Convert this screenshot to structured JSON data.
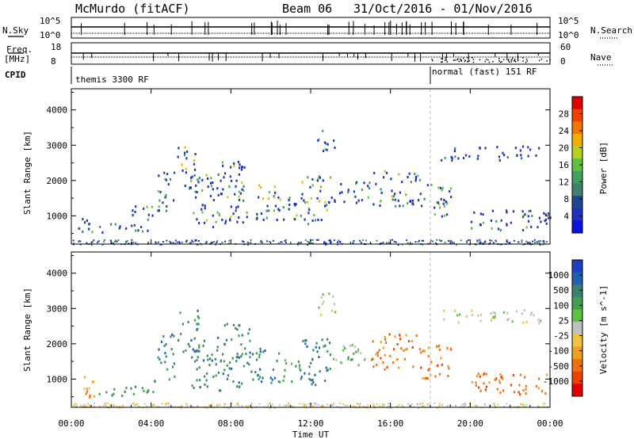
{
  "header": {
    "station": "McMurdo (fitACF)",
    "beam": "Beam 06",
    "dates": "31/Oct/2016 - 01/Nov/2016"
  },
  "status_panel": {
    "nsky_label": "N.Sky",
    "nsearch_label": "N.Search",
    "nsky_ticks": [
      "10^5",
      "10^0"
    ],
    "nsearch_ticks": [
      "10^5",
      "10^0"
    ],
    "freq_label_1": "Freq.",
    "freq_label_2": "[MHz]",
    "freq_ticks": [
      "18",
      "8"
    ],
    "nave_label": "Nave",
    "nave_ticks": [
      "60",
      "0"
    ],
    "cpid_label": "CPID",
    "cpid_segments": [
      {
        "label": "themis 3300 RF",
        "start_hour": 0
      },
      {
        "label": "normal (fast) 151 RF",
        "start_hour": 18
      }
    ]
  },
  "chart_data": [
    {
      "type": "heatmap",
      "name": "power-panel",
      "quantity": "Power",
      "ylabel": "Slant Range [km]",
      "yticks": [
        1000,
        2000,
        3000,
        4000
      ],
      "ylim": [
        200,
        4600
      ],
      "xlim_hours": [
        0,
        24
      ],
      "colorbar_label": "Power [dB]",
      "colorbar_ticks": [
        "28",
        "24",
        "20",
        "16",
        "12",
        "8",
        "4"
      ],
      "colorbar_colors": [
        "#e00000",
        "#f04000",
        "#f07800",
        "#f0b000",
        "#b8d020",
        "#60c040",
        "#40a060",
        "#408070",
        "#204890",
        "#2030c0",
        "#1010e0"
      ],
      "dominant_color": "#2848a0",
      "echo_regions": [
        {
          "t0": 0.3,
          "t1": 1.0,
          "r0": 500,
          "r1": 1200,
          "level": 1
        },
        {
          "t0": 1.0,
          "t1": 3.0,
          "r0": 550,
          "r1": 800,
          "level": 1
        },
        {
          "t0": 3.0,
          "t1": 4.2,
          "r0": 550,
          "r1": 1300,
          "level": 2
        },
        {
          "t0": 4.3,
          "t1": 5.2,
          "r0": 1000,
          "r1": 2300,
          "level": 2
        },
        {
          "t0": 5.3,
          "t1": 6.4,
          "r0": 1800,
          "r1": 3000,
          "level": 3
        },
        {
          "t0": 6.0,
          "t1": 7.5,
          "r0": 700,
          "r1": 2200,
          "level": 2
        },
        {
          "t0": 7.5,
          "t1": 9.0,
          "r0": 800,
          "r1": 2600,
          "level": 2
        },
        {
          "t0": 9.0,
          "t1": 10.5,
          "r0": 900,
          "r1": 1900,
          "level": 3
        },
        {
          "t0": 10.5,
          "t1": 11.5,
          "r0": 900,
          "r1": 1600,
          "level": 2
        },
        {
          "t0": 11.5,
          "t1": 13.0,
          "r0": 800,
          "r1": 2200,
          "level": 3
        },
        {
          "t0": 12.3,
          "t1": 13.2,
          "r0": 2800,
          "r1": 3500,
          "level": 1
        },
        {
          "t0": 13.0,
          "t1": 15.0,
          "r0": 1400,
          "r1": 2000,
          "level": 2
        },
        {
          "t0": 15.0,
          "t1": 17.5,
          "r0": 1300,
          "r1": 2300,
          "level": 3
        },
        {
          "t0": 17.5,
          "t1": 19.0,
          "r0": 1000,
          "r1": 2000,
          "level": 2
        },
        {
          "t0": 18.5,
          "t1": 23.5,
          "r0": 2600,
          "r1": 3000,
          "level": 1
        },
        {
          "t0": 20.0,
          "t1": 24.0,
          "r0": 600,
          "r1": 1200,
          "level": 1
        }
      ]
    },
    {
      "type": "heatmap",
      "name": "velocity-panel",
      "quantity": "Velocity",
      "ylabel": "Slant Range [km]",
      "yticks": [
        1000,
        2000,
        3000,
        4000
      ],
      "ylim": [
        200,
        4600
      ],
      "xlim_hours": [
        0,
        24
      ],
      "xticks": [
        "00:00",
        "04:00",
        "08:00",
        "12:00",
        "16:00",
        "20:00",
        "00:00"
      ],
      "xlabel": "Time UT",
      "colorbar_label": "Velocity [m s^-1]",
      "colorbar_ticks": [
        "1000",
        "500",
        "100",
        "25",
        "-25",
        "-100",
        "-500",
        "-1000"
      ],
      "colorbar_colors": [
        "#2040c0",
        "#2060b0",
        "#3c8070",
        "#40a050",
        "#60c040",
        "#c0c0c0",
        "#f0c040",
        "#f0a020",
        "#f07010",
        "#f04000",
        "#e00000"
      ],
      "echo_regions": [
        {
          "t0": 0.3,
          "t1": 1.2,
          "r0": 500,
          "r1": 1200,
          "level": 7
        },
        {
          "t0": 1.0,
          "t1": 3.0,
          "r0": 550,
          "r1": 800,
          "level": 2
        },
        {
          "t0": 3.0,
          "t1": 4.2,
          "r0": 550,
          "r1": 1000,
          "level": 3
        },
        {
          "t0": 4.3,
          "t1": 5.2,
          "r0": 1000,
          "r1": 2300,
          "level": 2
        },
        {
          "t0": 5.3,
          "t1": 6.4,
          "r0": 1800,
          "r1": 3000,
          "level": 2
        },
        {
          "t0": 6.0,
          "t1": 7.5,
          "r0": 700,
          "r1": 2200,
          "level": 2
        },
        {
          "t0": 7.5,
          "t1": 9.0,
          "r0": 800,
          "r1": 2600,
          "level": 2
        },
        {
          "t0": 9.0,
          "t1": 10.5,
          "r0": 900,
          "r1": 1900,
          "level": 2
        },
        {
          "t0": 10.5,
          "t1": 11.5,
          "r0": 900,
          "r1": 1600,
          "level": 3
        },
        {
          "t0": 11.5,
          "t1": 13.0,
          "r0": 800,
          "r1": 2200,
          "level": 2
        },
        {
          "t0": 12.3,
          "t1": 13.2,
          "r0": 2800,
          "r1": 3500,
          "level": 5
        },
        {
          "t0": 13.0,
          "t1": 15.0,
          "r0": 1400,
          "r1": 2000,
          "level": 4
        },
        {
          "t0": 15.0,
          "t1": 17.5,
          "r0": 1300,
          "r1": 2300,
          "level": 8
        },
        {
          "t0": 17.5,
          "t1": 19.0,
          "r0": 1000,
          "r1": 2000,
          "level": 8
        },
        {
          "t0": 18.5,
          "t1": 23.5,
          "r0": 2600,
          "r1": 3000,
          "level": 5
        },
        {
          "t0": 20.0,
          "t1": 24.0,
          "r0": 600,
          "r1": 1200,
          "level": 8
        }
      ]
    }
  ]
}
